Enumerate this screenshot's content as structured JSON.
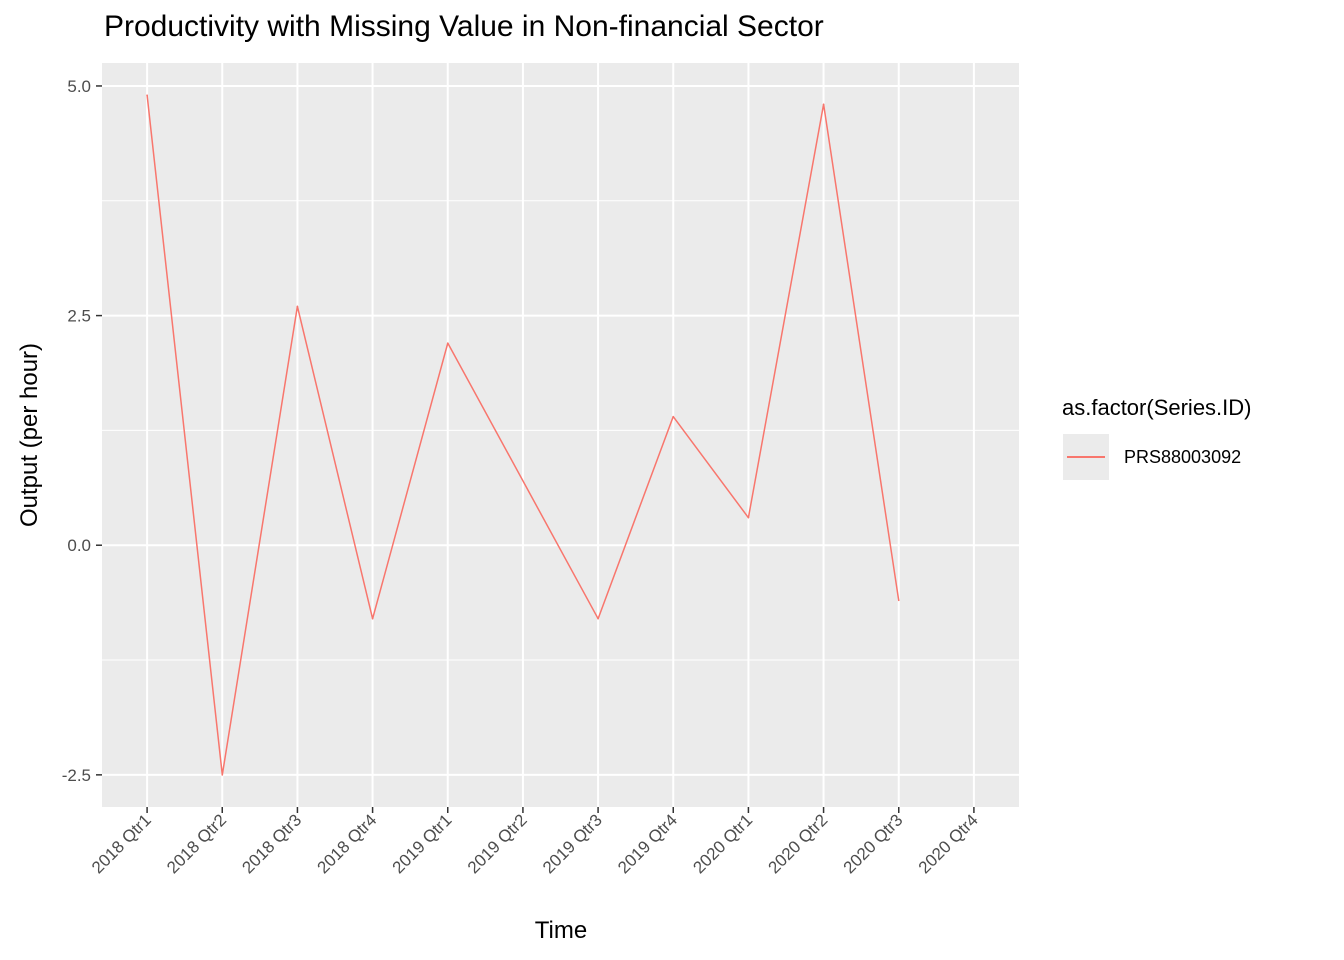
{
  "chart_data": {
    "type": "line",
    "title": "Productivity with Missing Value in Non-financial Sector",
    "xlabel": "Time",
    "ylabel": "Output (per hour)",
    "categories": [
      "2018 Qtr1",
      "2018 Qtr2",
      "2018 Qtr3",
      "2018 Qtr4",
      "2019 Qtr1",
      "2019 Qtr2",
      "2019 Qtr3",
      "2019 Qtr4",
      "2020 Qtr1",
      "2020 Qtr2",
      "2020 Qtr3",
      "2020 Qtr4"
    ],
    "yticks": [
      -2.5,
      0.0,
      2.5,
      5.0
    ],
    "ytick_labels": [
      "-2.5",
      "0.0",
      "2.5",
      "5.0"
    ],
    "ylim": [
      -2.85,
      5.25
    ],
    "grid": true,
    "legend": {
      "title": "as.factor(Series.ID)",
      "placement": "right"
    },
    "series": [
      {
        "name": "PRS88003092",
        "color": "#f8766d",
        "values": [
          4.9,
          -2.5,
          2.6,
          -0.8,
          2.2,
          null,
          -0.8,
          1.4,
          0.3,
          4.8,
          -0.6,
          null
        ]
      }
    ]
  }
}
